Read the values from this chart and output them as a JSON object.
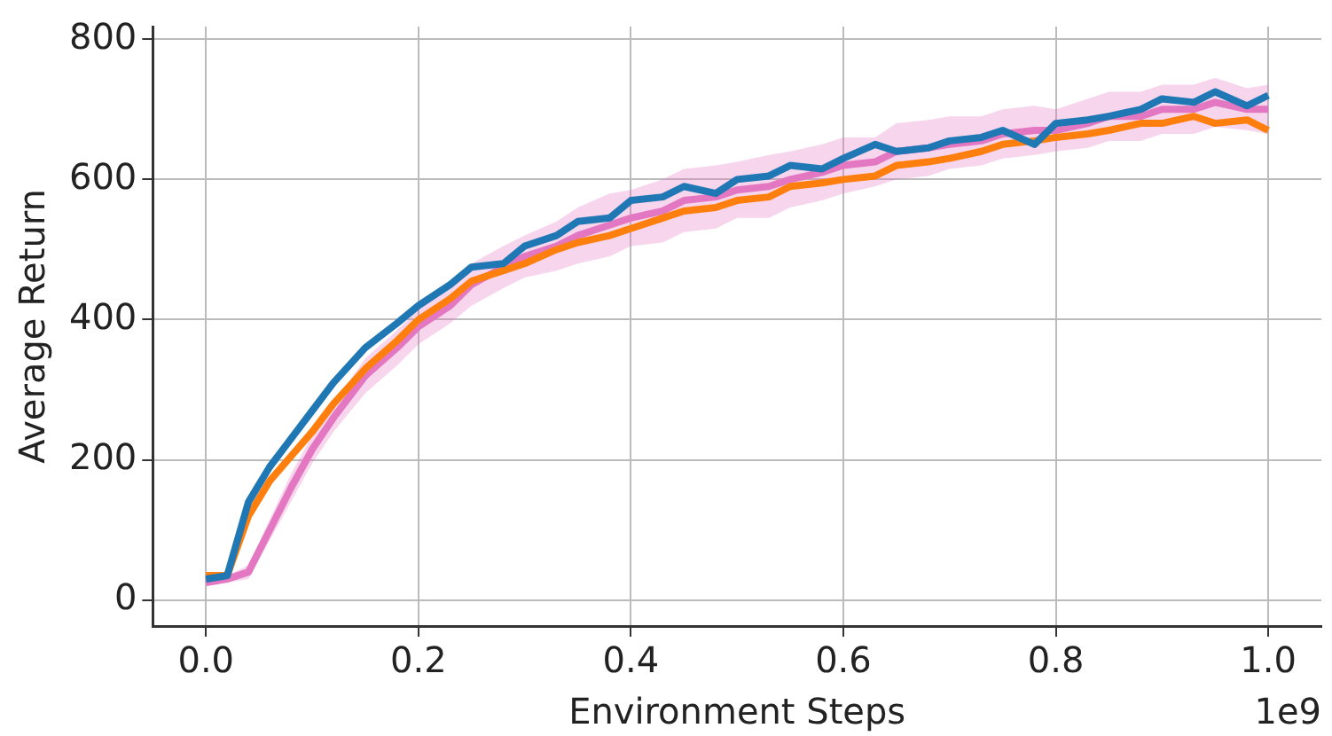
{
  "chart_data": {
    "type": "line",
    "xlabel": "Environment Steps",
    "ylabel": "Average Return",
    "annotations": [
      "1e9"
    ],
    "x": [
      0,
      0.02,
      0.04,
      0.06,
      0.08,
      0.1,
      0.12,
      0.15,
      0.18,
      0.2,
      0.23,
      0.25,
      0.28,
      0.3,
      0.33,
      0.35,
      0.38,
      0.4,
      0.43,
      0.45,
      0.48,
      0.5,
      0.53,
      0.55,
      0.58,
      0.6,
      0.63,
      0.65,
      0.68,
      0.7,
      0.73,
      0.75,
      0.78,
      0.8,
      0.83,
      0.85,
      0.88,
      0.9,
      0.93,
      0.95,
      0.98,
      1.0
    ],
    "series": [
      {
        "color": "#1f77b4",
        "values": [
          30,
          35,
          140,
          190,
          230,
          270,
          310,
          360,
          395,
          420,
          450,
          475,
          480,
          505,
          520,
          540,
          545,
          570,
          575,
          590,
          580,
          600,
          605,
          620,
          615,
          630,
          650,
          640,
          645,
          655,
          660,
          670,
          650,
          680,
          685,
          690,
          700,
          715,
          710,
          725,
          705,
          720
        ]
      },
      {
        "color": "#ff7f0e",
        "values": [
          35,
          35,
          120,
          170,
          205,
          240,
          280,
          330,
          370,
          400,
          430,
          455,
          470,
          480,
          500,
          510,
          520,
          530,
          545,
          555,
          560,
          570,
          575,
          590,
          595,
          600,
          605,
          620,
          625,
          630,
          640,
          650,
          655,
          660,
          665,
          670,
          680,
          680,
          690,
          680,
          685,
          670
        ]
      },
      {
        "color": "#e377c2",
        "values": [
          25,
          30,
          40,
          100,
          160,
          215,
          260,
          320,
          360,
          390,
          420,
          450,
          475,
          490,
          505,
          520,
          535,
          545,
          555,
          570,
          575,
          585,
          590,
          600,
          610,
          620,
          625,
          640,
          645,
          650,
          655,
          665,
          670,
          670,
          680,
          690,
          690,
          700,
          700,
          710,
          700,
          700
        ],
        "lower": [
          20,
          25,
          30,
          85,
          140,
          195,
          240,
          295,
          335,
          365,
          395,
          420,
          445,
          460,
          470,
          480,
          490,
          505,
          510,
          525,
          530,
          545,
          545,
          560,
          570,
          580,
          590,
          600,
          605,
          615,
          620,
          630,
          635,
          640,
          645,
          655,
          655,
          665,
          665,
          675,
          670,
          665
        ],
        "upper": [
          30,
          35,
          50,
          115,
          180,
          235,
          280,
          345,
          385,
          415,
          445,
          480,
          505,
          520,
          540,
          560,
          580,
          585,
          600,
          615,
          620,
          625,
          635,
          640,
          650,
          660,
          660,
          680,
          685,
          690,
          690,
          700,
          705,
          700,
          715,
          725,
          725,
          735,
          735,
          745,
          730,
          735
        ]
      }
    ],
    "xlim": [
      -0.05,
      1.05
    ],
    "ylim": [
      -37,
      818
    ],
    "xticks": [
      {
        "value": 0,
        "label": "0.0"
      },
      {
        "value": 0.2,
        "label": "0.2"
      },
      {
        "value": 0.4,
        "label": "0.4"
      },
      {
        "value": 0.6,
        "label": "0.6"
      },
      {
        "value": 0.8,
        "label": "0.8"
      },
      {
        "value": 1,
        "label": "1.0"
      }
    ],
    "yticks": [
      0,
      200,
      400,
      600,
      800
    ],
    "grid": true,
    "legend": false,
    "line_style": "solid",
    "marker": "none"
  }
}
